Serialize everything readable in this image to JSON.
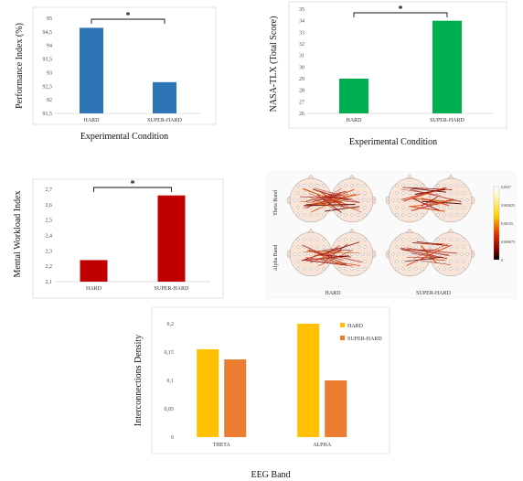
{
  "chart_data": [
    {
      "type": "bar",
      "categories": [
        "HARD",
        "SUPER-HARD"
      ],
      "values": [
        94.65,
        92.65
      ],
      "ylabel": "Performance Index (%)",
      "xlabel": "Experimental Condition",
      "ylim": [
        91.5,
        95
      ],
      "yticks": [
        "91,5",
        "92",
        "92,5",
        "93",
        "93,5",
        "94",
        "94,5",
        "95"
      ],
      "color": "#2E75B6",
      "significance": "*"
    },
    {
      "type": "bar",
      "categories": [
        "HARD",
        "SUPER-HARD"
      ],
      "values": [
        29,
        34
      ],
      "ylabel": "NASA-TLX (Total Score)",
      "xlabel": "Experimental Condition",
      "ylim": [
        26,
        35
      ],
      "yticks": [
        "26",
        "27",
        "28",
        "29",
        "30",
        "31",
        "32",
        "33",
        "34",
        "35"
      ],
      "color": "#00B050",
      "significance": "*"
    },
    {
      "type": "bar",
      "categories": [
        "HARD",
        "SUPER-HARD"
      ],
      "values": [
        2.24,
        2.66
      ],
      "ylabel": "Mental Workload Index",
      "xlabel": "",
      "ylim": [
        2.1,
        2.7
      ],
      "yticks": [
        "2,1",
        "2,2",
        "2,3",
        "2,4",
        "2,5",
        "2,6",
        "2,7"
      ],
      "color": "#C00000",
      "significance": "*"
    },
    {
      "type": "bar",
      "categories": [
        "THETA",
        "ALPHA"
      ],
      "series": [
        {
          "name": "HARD",
          "values": [
            0.155,
            0.2
          ],
          "color": "#FFC000"
        },
        {
          "name": "SUPER-HARD",
          "values": [
            0.137,
            0.1
          ],
          "color": "#ED7D31"
        }
      ],
      "ylabel": "Interconnections Density",
      "xlabel": "EEG Band",
      "ylim": [
        0,
        0.2
      ],
      "yticks": [
        "0",
        "0,05",
        "0,1",
        "0,15",
        "0,2"
      ],
      "legend": "top-right"
    }
  ],
  "connectivity_map": {
    "row_labels": [
      "Theta Band",
      "Alpha Band"
    ],
    "col_labels": [
      "HARD",
      "SUPER-HARD"
    ],
    "colorbar_ticks": [
      "0,0027",
      "0,002025",
      "0,00135",
      "0,000675",
      "0"
    ]
  }
}
